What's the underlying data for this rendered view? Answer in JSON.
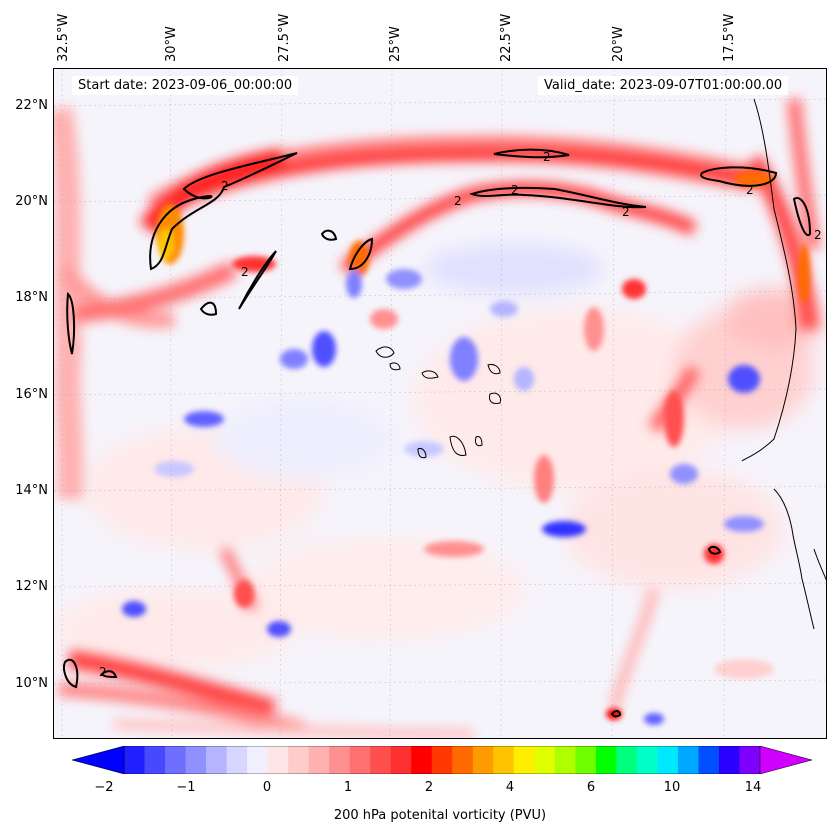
{
  "header": {
    "start_date": "Start date: 2023-09-06_00:00:00",
    "valid_date": "Valid_date: 2023-09-07T01:00:00.00"
  },
  "axes": {
    "longitude_labels": [
      "32.5°W",
      "30°W",
      "27.5°W",
      "25°W",
      "22.5°W",
      "20°W",
      "17.5°W"
    ],
    "latitude_labels": [
      "22°N",
      "20°N",
      "18°N",
      "16°N",
      "14°N",
      "12°N",
      "10°N"
    ]
  },
  "colorbar": {
    "title": "200 hPa potenital vorticity (PVU)",
    "tick_labels": [
      "−2",
      "−1",
      "0",
      "1",
      "2",
      "4",
      "6",
      "10",
      "14"
    ],
    "colors": [
      "#0000ff",
      "#2020ff",
      "#4848ff",
      "#6e6eff",
      "#9090ff",
      "#b4b4ff",
      "#d6d6ff",
      "#f0f0ff",
      "#ffe6e6",
      "#ffcccc",
      "#ffb0b0",
      "#ff9090",
      "#ff7070",
      "#ff5050",
      "#ff3030",
      "#ff0000",
      "#ff3800",
      "#ff6a00",
      "#ff9a00",
      "#ffc400",
      "#ffee00",
      "#e0ff00",
      "#b0ff00",
      "#70ff00",
      "#00ff00",
      "#00ff80",
      "#00ffc8",
      "#00e8ff",
      "#00a8ff",
      "#0050ff",
      "#2a00ff",
      "#8000ff",
      "#d000ff"
    ]
  },
  "contour_label": "2"
}
